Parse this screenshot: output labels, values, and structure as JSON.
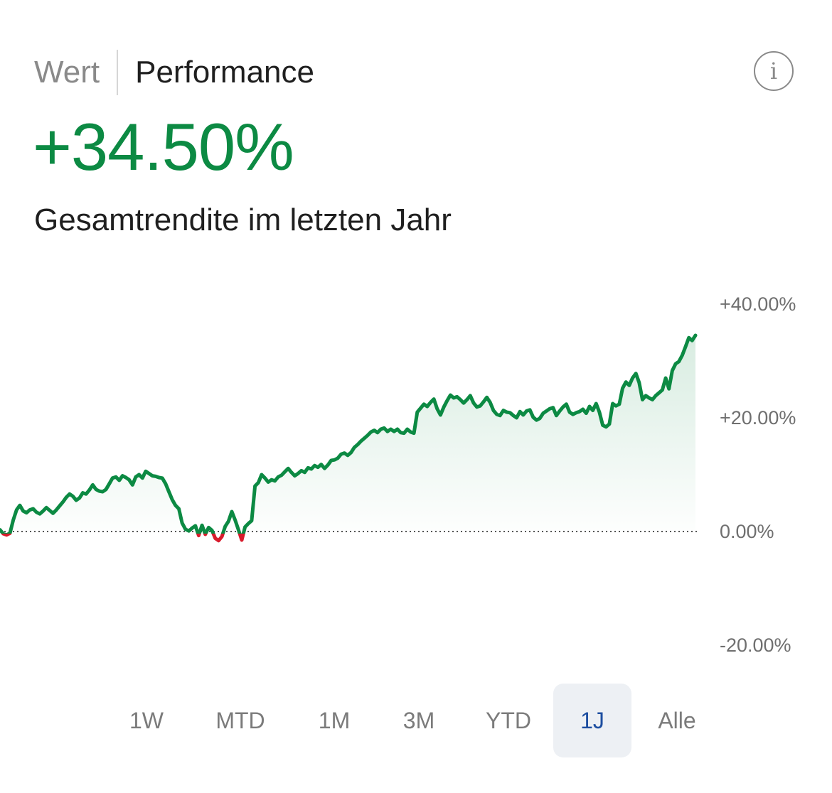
{
  "header": {
    "tabs": [
      {
        "label": "Wert",
        "active": false
      },
      {
        "label": "Performance",
        "active": true
      }
    ],
    "info_icon": "info-circle-icon"
  },
  "summary": {
    "value": "+34.50%",
    "caption": "Gesamtrendite im letzten Jahr",
    "value_color": "#0c8a43"
  },
  "chart_data": {
    "type": "line",
    "title": "",
    "xlabel": "",
    "ylabel": "",
    "ylim": [
      -20,
      40
    ],
    "y_ticks": [
      "+40.00%",
      "+20.00%",
      "0.00%",
      "-20.00%"
    ],
    "y_tick_values": [
      40,
      20,
      0,
      -20
    ],
    "baseline": 0,
    "grid": false,
    "legend": "none",
    "colors": {
      "positive": "#0c8a43",
      "negative": "#d81b2c",
      "fill": "#0c8a43",
      "baseline": "#555555"
    },
    "series": [
      {
        "values": [
          0.3,
          -0.4,
          -0.6,
          -0.3,
          2.0,
          3.8,
          4.6,
          3.6,
          3.3,
          3.8,
          4.0,
          3.4,
          3.1,
          3.6,
          4.2,
          3.7,
          3.2,
          3.8,
          4.5,
          5.2,
          6.0,
          6.6,
          6.2,
          5.5,
          5.9,
          6.8,
          6.6,
          7.3,
          8.2,
          7.4,
          7.1,
          7.0,
          7.4,
          8.4,
          9.4,
          9.6,
          9.0,
          9.8,
          9.5,
          9.1,
          8.2,
          9.6,
          10.0,
          9.4,
          10.6,
          10.2,
          9.8,
          9.7,
          9.5,
          9.4,
          8.4,
          7.0,
          5.6,
          4.6,
          4.0,
          1.5,
          0.4,
          0.1,
          0.6,
          1.0,
          -0.7,
          1.1,
          -0.5,
          0.7,
          0.2,
          -1.2,
          -1.6,
          -0.9,
          0.9,
          1.8,
          3.5,
          2.0,
          0.3,
          -1.5,
          0.8,
          1.4,
          1.9,
          8.0,
          8.6,
          10.0,
          9.4,
          8.7,
          9.1,
          8.9,
          9.6,
          9.9,
          10.5,
          11.1,
          10.4,
          9.8,
          10.2,
          10.7,
          10.4,
          11.2,
          11.0,
          11.6,
          11.3,
          11.8,
          11.1,
          11.7,
          12.5,
          12.6,
          12.9,
          13.6,
          13.8,
          13.4,
          13.9,
          14.8,
          15.3,
          15.9,
          16.4,
          16.9,
          17.5,
          17.8,
          17.4,
          18.0,
          18.2,
          17.6,
          18.0,
          17.6,
          18.0,
          17.4,
          17.3,
          18.0,
          17.5,
          17.3,
          21.0,
          21.7,
          22.4,
          22.0,
          22.7,
          23.3,
          21.6,
          20.5,
          21.9,
          23.0,
          24.0,
          23.5,
          23.7,
          23.2,
          22.6,
          23.2,
          23.9,
          22.6,
          21.9,
          22.1,
          22.8,
          23.6,
          22.7,
          21.3,
          20.6,
          20.4,
          21.3,
          21.0,
          20.9,
          20.4,
          20.0,
          21.1,
          20.5,
          21.2,
          21.4,
          20.1,
          19.6,
          19.9,
          20.8,
          21.2,
          21.6,
          21.8,
          20.4,
          21.2,
          21.9,
          22.4,
          21.0,
          20.6,
          20.9,
          21.1,
          21.5,
          20.8,
          22.0,
          21.3,
          22.5,
          21.0,
          18.7,
          18.4,
          18.9,
          22.5,
          22.1,
          22.4,
          25.2,
          26.3,
          25.7,
          27.0,
          27.8,
          26.2,
          23.2,
          23.9,
          23.5,
          23.2,
          23.9,
          24.4,
          24.9,
          27.0,
          25.1,
          28.3,
          29.5,
          29.9,
          31.0,
          32.5,
          34.1,
          33.6,
          34.5
        ]
      }
    ]
  },
  "periods": [
    {
      "label": "1W",
      "active": false
    },
    {
      "label": "MTD",
      "active": false
    },
    {
      "label": "1M",
      "active": false
    },
    {
      "label": "3M",
      "active": false
    },
    {
      "label": "YTD",
      "active": false
    },
    {
      "label": "1J",
      "active": true
    },
    {
      "label": "Alle",
      "active": false
    }
  ]
}
